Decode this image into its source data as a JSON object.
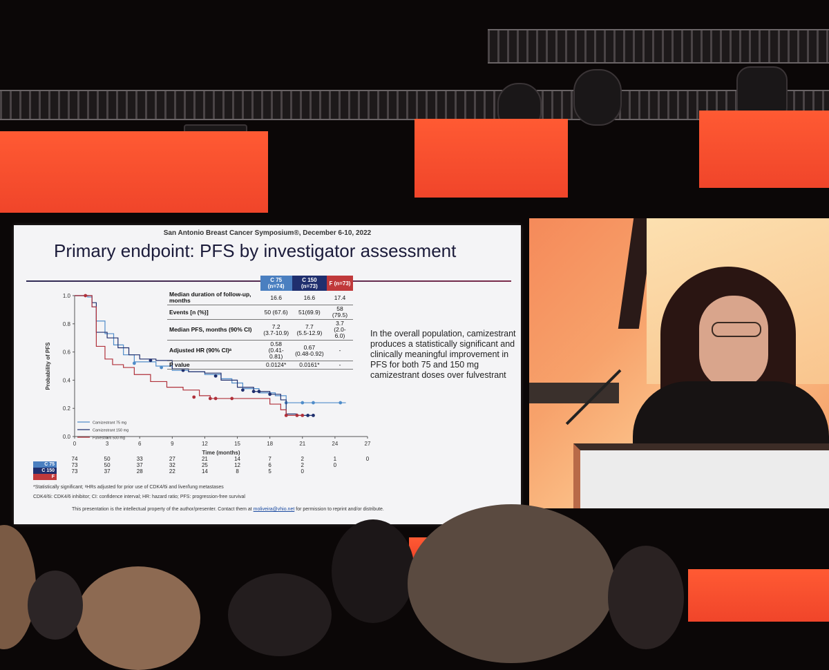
{
  "slide": {
    "conference": "San Antonio Breast Cancer Symposium®, December 6-10, 2022",
    "title": "Primary endpoint: PFS by investigator assessment",
    "bullet_text": "In the overall population, camizestrant produces a statistically significant and clinically meaningful improvement in PFS for both 75 and 150 mg camizestrant doses over fulvestrant",
    "table": {
      "headers": [
        "C 75 (n=74)",
        "C 150 (n=73)",
        "F (n=73)"
      ],
      "header_colors": [
        "#4a7fc0",
        "#1f2f6e",
        "#c0393b"
      ],
      "rows": [
        {
          "label": "Median duration of follow-up, months",
          "values": [
            "16.6",
            "16.6",
            "17.4"
          ]
        },
        {
          "label": "Events [n (%)]",
          "values": [
            "50 (67.6)",
            "51(69.9)",
            "58 (79.5)"
          ]
        },
        {
          "label": "Median PFS, months (90% CI)",
          "values": [
            "7.2\n(3.7-10.9)",
            "7.7\n(5.5-12.9)",
            "3.7\n(2.0-6.0)"
          ]
        },
        {
          "label": "Adjusted HR (90% CI)ᵃ",
          "values": [
            "0.58\n(0.41-0.81)",
            "0.67\n(0.48-0.92)",
            "-"
          ]
        },
        {
          "label": "P value",
          "values": [
            "0.0124*",
            "0.0161*",
            "-"
          ]
        }
      ]
    },
    "risk_table": {
      "labels": [
        "C 75",
        "C 150",
        "F"
      ],
      "rows": [
        [
          "74",
          "50",
          "33",
          "27",
          "21",
          "14",
          "7",
          "2",
          "1",
          "0"
        ],
        [
          "73",
          "50",
          "37",
          "32",
          "25",
          "12",
          "6",
          "2",
          "0",
          ""
        ],
        [
          "73",
          "37",
          "28",
          "22",
          "14",
          "8",
          "5",
          "0",
          "",
          ""
        ]
      ]
    },
    "footnote1": "*Statistically significant; ᵃHRs adjusted for prior use of CDK4/6i and liver/lung metastases",
    "footnote2": "CDK4/6i: CDK4/6 inhibitor; CI: confidence interval; HR: hazard ratio; PFS: progression-free survival",
    "footer_prefix": "This presentation is the intellectual property of the author/presenter. Contact them at",
    "footer_email": "moliveira@vhio.net",
    "footer_suffix": "for permission to reprint and/or distribute."
  },
  "chart_data": {
    "type": "line",
    "xlabel": "Time (months)",
    "ylabel": "Probability of PFS",
    "xlim": [
      0,
      27
    ],
    "ylim": [
      0,
      1.0
    ],
    "xticks": [
      0,
      3,
      6,
      9,
      12,
      15,
      18,
      21,
      24,
      27
    ],
    "yticks": [
      0.0,
      0.2,
      0.4,
      0.6,
      0.8,
      1.0
    ],
    "legend_position": "bottom-left",
    "series": [
      {
        "name": "Camizestrant 75 mg",
        "color": "#4f8cc9",
        "x": [
          0,
          1.2,
          1.6,
          2.0,
          2.8,
          3.6,
          4.5,
          5.5,
          7.5,
          9.0,
          10.5,
          12.0,
          13.5,
          14.5,
          15.5,
          17.0,
          18.5,
          19.5,
          21.0,
          22.0,
          25.0
        ],
        "y": [
          1.0,
          0.99,
          0.92,
          0.82,
          0.73,
          0.65,
          0.58,
          0.53,
          0.5,
          0.47,
          0.46,
          0.44,
          0.41,
          0.38,
          0.34,
          0.31,
          0.29,
          0.24,
          0.24,
          0.24,
          0.24
        ],
        "censored": [
          [
            5.5,
            0.52
          ],
          [
            8.0,
            0.49
          ],
          [
            13.0,
            0.43
          ],
          [
            19.5,
            0.24
          ],
          [
            21.0,
            0.24
          ],
          [
            22.0,
            0.24
          ],
          [
            24.5,
            0.24
          ]
        ]
      },
      {
        "name": "Camizestrant 150 mg",
        "color": "#1f2f6e",
        "x": [
          0,
          1.0,
          1.6,
          2.0,
          3.0,
          4.0,
          5.0,
          6.0,
          7.5,
          9.0,
          10.5,
          12.0,
          13.5,
          15.0,
          16.5,
          18.0,
          19.0,
          19.5,
          20.5,
          21.5,
          22.0
        ],
        "y": [
          1.0,
          1.0,
          0.95,
          0.74,
          0.7,
          0.63,
          0.58,
          0.55,
          0.54,
          0.48,
          0.46,
          0.45,
          0.4,
          0.35,
          0.32,
          0.3,
          0.26,
          0.16,
          0.15,
          0.15,
          0.15
        ],
        "censored": [
          [
            7.0,
            0.54
          ],
          [
            10.0,
            0.47
          ],
          [
            13.0,
            0.43
          ],
          [
            15.5,
            0.33
          ],
          [
            16.5,
            0.32
          ],
          [
            17.0,
            0.32
          ],
          [
            18.0,
            0.3
          ],
          [
            21.5,
            0.15
          ],
          [
            22.0,
            0.15
          ]
        ]
      },
      {
        "name": "Fulvestrant 500 mg",
        "color": "#b0303a",
        "x": [
          0,
          1.0,
          1.6,
          2.0,
          2.8,
          3.5,
          4.5,
          5.5,
          7.0,
          8.5,
          10.0,
          11.5,
          12.5,
          14.0,
          16.0,
          18.0,
          19.0,
          19.5,
          20.5,
          21.0
        ],
        "y": [
          1.0,
          1.0,
          0.92,
          0.64,
          0.55,
          0.51,
          0.49,
          0.44,
          0.39,
          0.35,
          0.33,
          0.29,
          0.27,
          0.27,
          0.27,
          0.23,
          0.19,
          0.15,
          0.15,
          0.15
        ],
        "censored": [
          [
            1.0,
            1.0
          ],
          [
            11.0,
            0.28
          ],
          [
            12.5,
            0.27
          ],
          [
            13.0,
            0.27
          ],
          [
            14.5,
            0.27
          ],
          [
            19.5,
            0.15
          ],
          [
            20.5,
            0.15
          ],
          [
            21.0,
            0.15
          ]
        ]
      }
    ]
  },
  "colors": {
    "led_panel": "#f04a2c",
    "slide_background": "#f4f4f6",
    "video_warm": "#f7a26b"
  }
}
